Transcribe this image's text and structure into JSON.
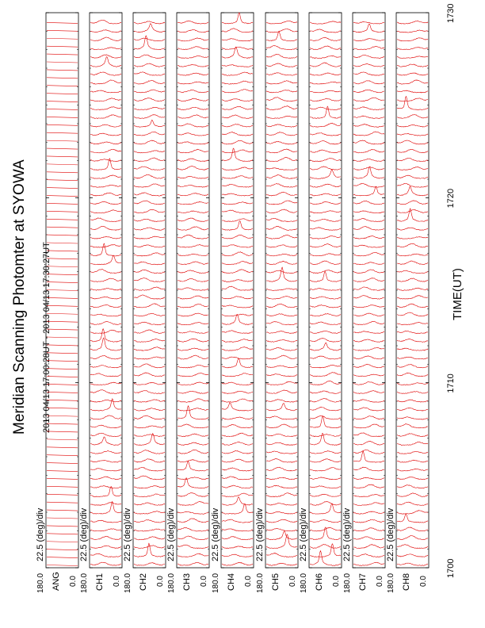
{
  "title": "Meridian Scanning Photomter at SYOWA",
  "time_range": "2013 04/13 17:00:28UT - 2013 04/13 17:30:27UT",
  "colors": {
    "trace": "#e00000",
    "axes": "#000000",
    "background": "#ffffff"
  },
  "chart_data": {
    "type": "line",
    "title": "Meridian Scanning Photomter at SYOWA",
    "subtitle": "2013 04/13 17:00:28UT - 2013 04/13 17:30:27UT",
    "xlabel": "TIME(UT)",
    "x_ticks": [
      "1700",
      "1710",
      "1720",
      "1730"
    ],
    "xlim": [
      1700,
      1730
    ],
    "panels": [
      {
        "name": "ANG",
        "ylabel": "ANG",
        "scale": "22.5 (deg)/div",
        "ticks": [
          "180.0",
          "0.0"
        ],
        "ylim": [
          0,
          180
        ],
        "kind": "angle"
      },
      {
        "name": "CH1",
        "ylabel": "CH1",
        "scale": "22.5 (deg)/div",
        "ticks": [
          "180.0",
          "0.0"
        ],
        "ylim": [
          0,
          180
        ],
        "kind": "channel"
      },
      {
        "name": "CH2",
        "ylabel": "CH2",
        "scale": "22.5 (deg)/div",
        "ticks": [
          "180.0",
          "0.0"
        ],
        "ylim": [
          0,
          180
        ],
        "kind": "channel"
      },
      {
        "name": "CH3",
        "ylabel": "CH3",
        "scale": "22.5 (deg)/div",
        "ticks": [
          "180.0",
          "0.0"
        ],
        "ylim": [
          0,
          180
        ],
        "kind": "channel"
      },
      {
        "name": "CH4",
        "ylabel": "CH4",
        "scale": "22.5 (deg)/div",
        "ticks": [
          "180.0",
          "0.0"
        ],
        "ylim": [
          0,
          180
        ],
        "kind": "channel"
      },
      {
        "name": "CH5",
        "ylabel": "CH5",
        "scale": "22.5 (deg)/div",
        "ticks": [
          "180.0",
          "0.0"
        ],
        "ylim": [
          0,
          180
        ],
        "kind": "channel"
      },
      {
        "name": "CH6",
        "ylabel": "CH6",
        "scale": "22.5 (deg)/div",
        "ticks": [
          "180.0",
          "0.0"
        ],
        "ylim": [
          0,
          180
        ],
        "kind": "channel"
      },
      {
        "name": "CH7",
        "ylabel": "CH7",
        "scale": "22.5 (deg)/div",
        "ticks": [
          "180.0",
          "0.0"
        ],
        "ylim": [
          0,
          180
        ],
        "kind": "channel"
      },
      {
        "name": "CH8",
        "ylabel": "CH8",
        "scale": "22.5 (deg)/div",
        "ticks": [
          "180.0",
          "0.0"
        ],
        "ylim": [
          0,
          180
        ],
        "kind": "channel"
      }
    ],
    "grid": false,
    "orientation": "rotated"
  }
}
